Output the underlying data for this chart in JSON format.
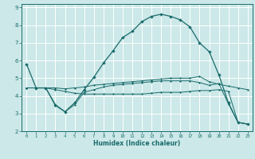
{
  "xlabel": "Humidex (Indice chaleur)",
  "bg_color": "#cce8e8",
  "line_color": "#1a6b6b",
  "grid_color": "#ffffff",
  "xlim": [
    -0.5,
    23.5
  ],
  "ylim": [
    2,
    9.2
  ],
  "xticks": [
    0,
    1,
    2,
    3,
    4,
    5,
    6,
    7,
    8,
    9,
    10,
    11,
    12,
    13,
    14,
    15,
    16,
    17,
    18,
    19,
    20,
    21,
    22,
    23
  ],
  "yticks": [
    2,
    3,
    4,
    5,
    6,
    7,
    8,
    9
  ],
  "curve1_x": [
    0,
    1,
    2,
    3,
    4,
    5,
    6,
    7,
    8,
    9,
    10,
    11,
    12,
    13,
    14,
    15,
    16,
    17,
    18,
    19,
    20,
    21,
    22,
    23
  ],
  "curve1_y": [
    5.8,
    4.45,
    4.45,
    3.5,
    3.1,
    3.6,
    4.35,
    5.05,
    5.85,
    6.55,
    7.3,
    7.65,
    8.2,
    8.5,
    8.62,
    8.5,
    8.3,
    7.9,
    7.0,
    6.5,
    5.2,
    3.6,
    2.5,
    2.4
  ],
  "curve2_x": [
    0,
    1,
    2,
    3,
    4,
    5,
    6,
    7,
    8,
    9,
    10,
    11,
    12,
    13,
    14,
    15,
    16,
    17,
    18,
    19,
    20,
    21,
    22,
    23
  ],
  "curve2_y": [
    4.45,
    4.45,
    4.45,
    4.45,
    4.4,
    4.45,
    4.5,
    4.6,
    4.65,
    4.7,
    4.75,
    4.8,
    4.85,
    4.9,
    4.95,
    5.0,
    5.0,
    5.0,
    5.1,
    4.8,
    4.65,
    4.55,
    4.45,
    4.35
  ],
  "curve3_x": [
    0,
    1,
    2,
    3,
    4,
    5,
    6,
    7,
    8,
    9,
    10,
    11,
    12,
    13,
    14,
    15,
    16,
    17,
    18,
    19,
    20,
    21,
    22,
    23
  ],
  "curve3_y": [
    4.45,
    4.45,
    4.45,
    4.35,
    4.25,
    4.15,
    4.1,
    4.1,
    4.1,
    4.1,
    4.1,
    4.1,
    4.1,
    4.15,
    4.2,
    4.2,
    4.2,
    4.25,
    4.3,
    4.3,
    4.35,
    4.25,
    2.5,
    2.4
  ],
  "curve4_x": [
    0,
    1,
    2,
    3,
    4,
    5,
    6,
    7,
    8,
    9,
    10,
    11,
    12,
    13,
    14,
    15,
    16,
    17,
    18,
    19,
    20,
    21,
    22,
    23
  ],
  "curve4_y": [
    4.45,
    4.45,
    4.45,
    3.45,
    3.1,
    3.5,
    4.2,
    4.35,
    4.5,
    4.6,
    4.65,
    4.7,
    4.75,
    4.8,
    4.85,
    4.85,
    4.85,
    4.85,
    4.75,
    4.6,
    4.7,
    3.55,
    2.5,
    2.4
  ]
}
